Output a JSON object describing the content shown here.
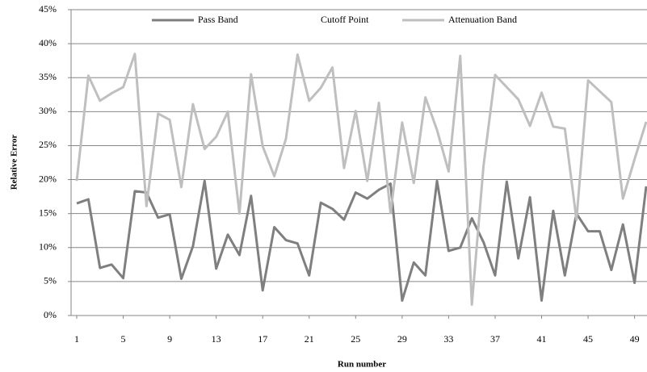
{
  "chart_data": {
    "type": "line",
    "x_label": "Run number",
    "y_label": "Relative Error",
    "x": [
      1,
      2,
      3,
      4,
      5,
      6,
      7,
      8,
      9,
      10,
      11,
      12,
      13,
      14,
      15,
      16,
      17,
      18,
      19,
      20,
      21,
      22,
      23,
      24,
      25,
      26,
      27,
      28,
      29,
      30,
      31,
      32,
      33,
      34,
      35,
      36,
      37,
      38,
      39,
      40,
      41,
      42,
      43,
      44,
      45,
      46,
      47,
      48,
      49,
      50
    ],
    "xlim": [
      1,
      50
    ],
    "xticks": [
      1,
      5,
      9,
      13,
      17,
      21,
      25,
      29,
      33,
      37,
      41,
      45,
      49
    ],
    "ylim": [
      0,
      45
    ],
    "yticks": [
      {
        "value": 0,
        "label": "0%"
      },
      {
        "value": 5,
        "label": "5%"
      },
      {
        "value": 10,
        "label": "10%"
      },
      {
        "value": 15,
        "label": "15%"
      },
      {
        "value": 20,
        "label": "20%"
      },
      {
        "value": 25,
        "label": "25%"
      },
      {
        "value": 30,
        "label": "30%"
      },
      {
        "value": 35,
        "label": "35%"
      },
      {
        "value": 40,
        "label": "40%"
      },
      {
        "value": 45,
        "label": "45%"
      }
    ],
    "grid": true,
    "legend": "top",
    "series": [
      {
        "name": "Pass Band",
        "color": "#7f7f7f",
        "values": [
          16.5,
          17.1,
          7.0,
          7.5,
          5.5,
          18.3,
          18.1,
          14.4,
          14.9,
          5.4,
          10.2,
          19.8,
          6.9,
          11.9,
          8.9,
          17.6,
          3.7,
          13.0,
          11.1,
          10.6,
          5.9,
          16.6,
          15.7,
          14.1,
          18.1,
          17.2,
          18.5,
          19.4,
          2.2,
          7.8,
          5.9,
          19.8,
          9.5,
          10.0,
          14.3,
          10.8,
          5.9,
          19.7,
          8.4,
          17.4,
          2.2,
          15.4,
          5.9,
          15.0,
          12.4,
          12.4,
          6.7,
          13.4,
          4.8,
          19.0
        ]
      },
      {
        "name": "Cutoff Point",
        "color": "#ffffff",
        "values": [
          null,
          null,
          null,
          null,
          null,
          null,
          null,
          null,
          null,
          null,
          null,
          null,
          null,
          null,
          null,
          null,
          null,
          null,
          null,
          null,
          null,
          null,
          null,
          null,
          null,
          null,
          null,
          null,
          null,
          null,
          null,
          null,
          null,
          null,
          null,
          null,
          null,
          null,
          null,
          null,
          null,
          null,
          null,
          null,
          null,
          null,
          null,
          null,
          null,
          null
        ]
      },
      {
        "name": "Attenuation Band",
        "color": "#bfbfbf",
        "values": [
          19.8,
          35.3,
          31.6,
          32.7,
          33.6,
          38.5,
          16.1,
          29.7,
          28.8,
          18.9,
          31.1,
          24.5,
          26.3,
          30.0,
          15.0,
          35.5,
          24.9,
          20.5,
          26.0,
          38.4,
          31.6,
          33.5,
          36.5,
          21.7,
          30.1,
          19.8,
          31.3,
          15.1,
          28.4,
          19.5,
          32.1,
          27.3,
          21.2,
          38.2,
          1.6,
          22.0,
          35.4,
          33.6,
          31.8,
          27.9,
          32.8,
          27.8,
          27.5,
          14.1,
          34.6,
          33.0,
          31.4,
          17.2,
          23.0,
          28.5
        ]
      }
    ]
  }
}
